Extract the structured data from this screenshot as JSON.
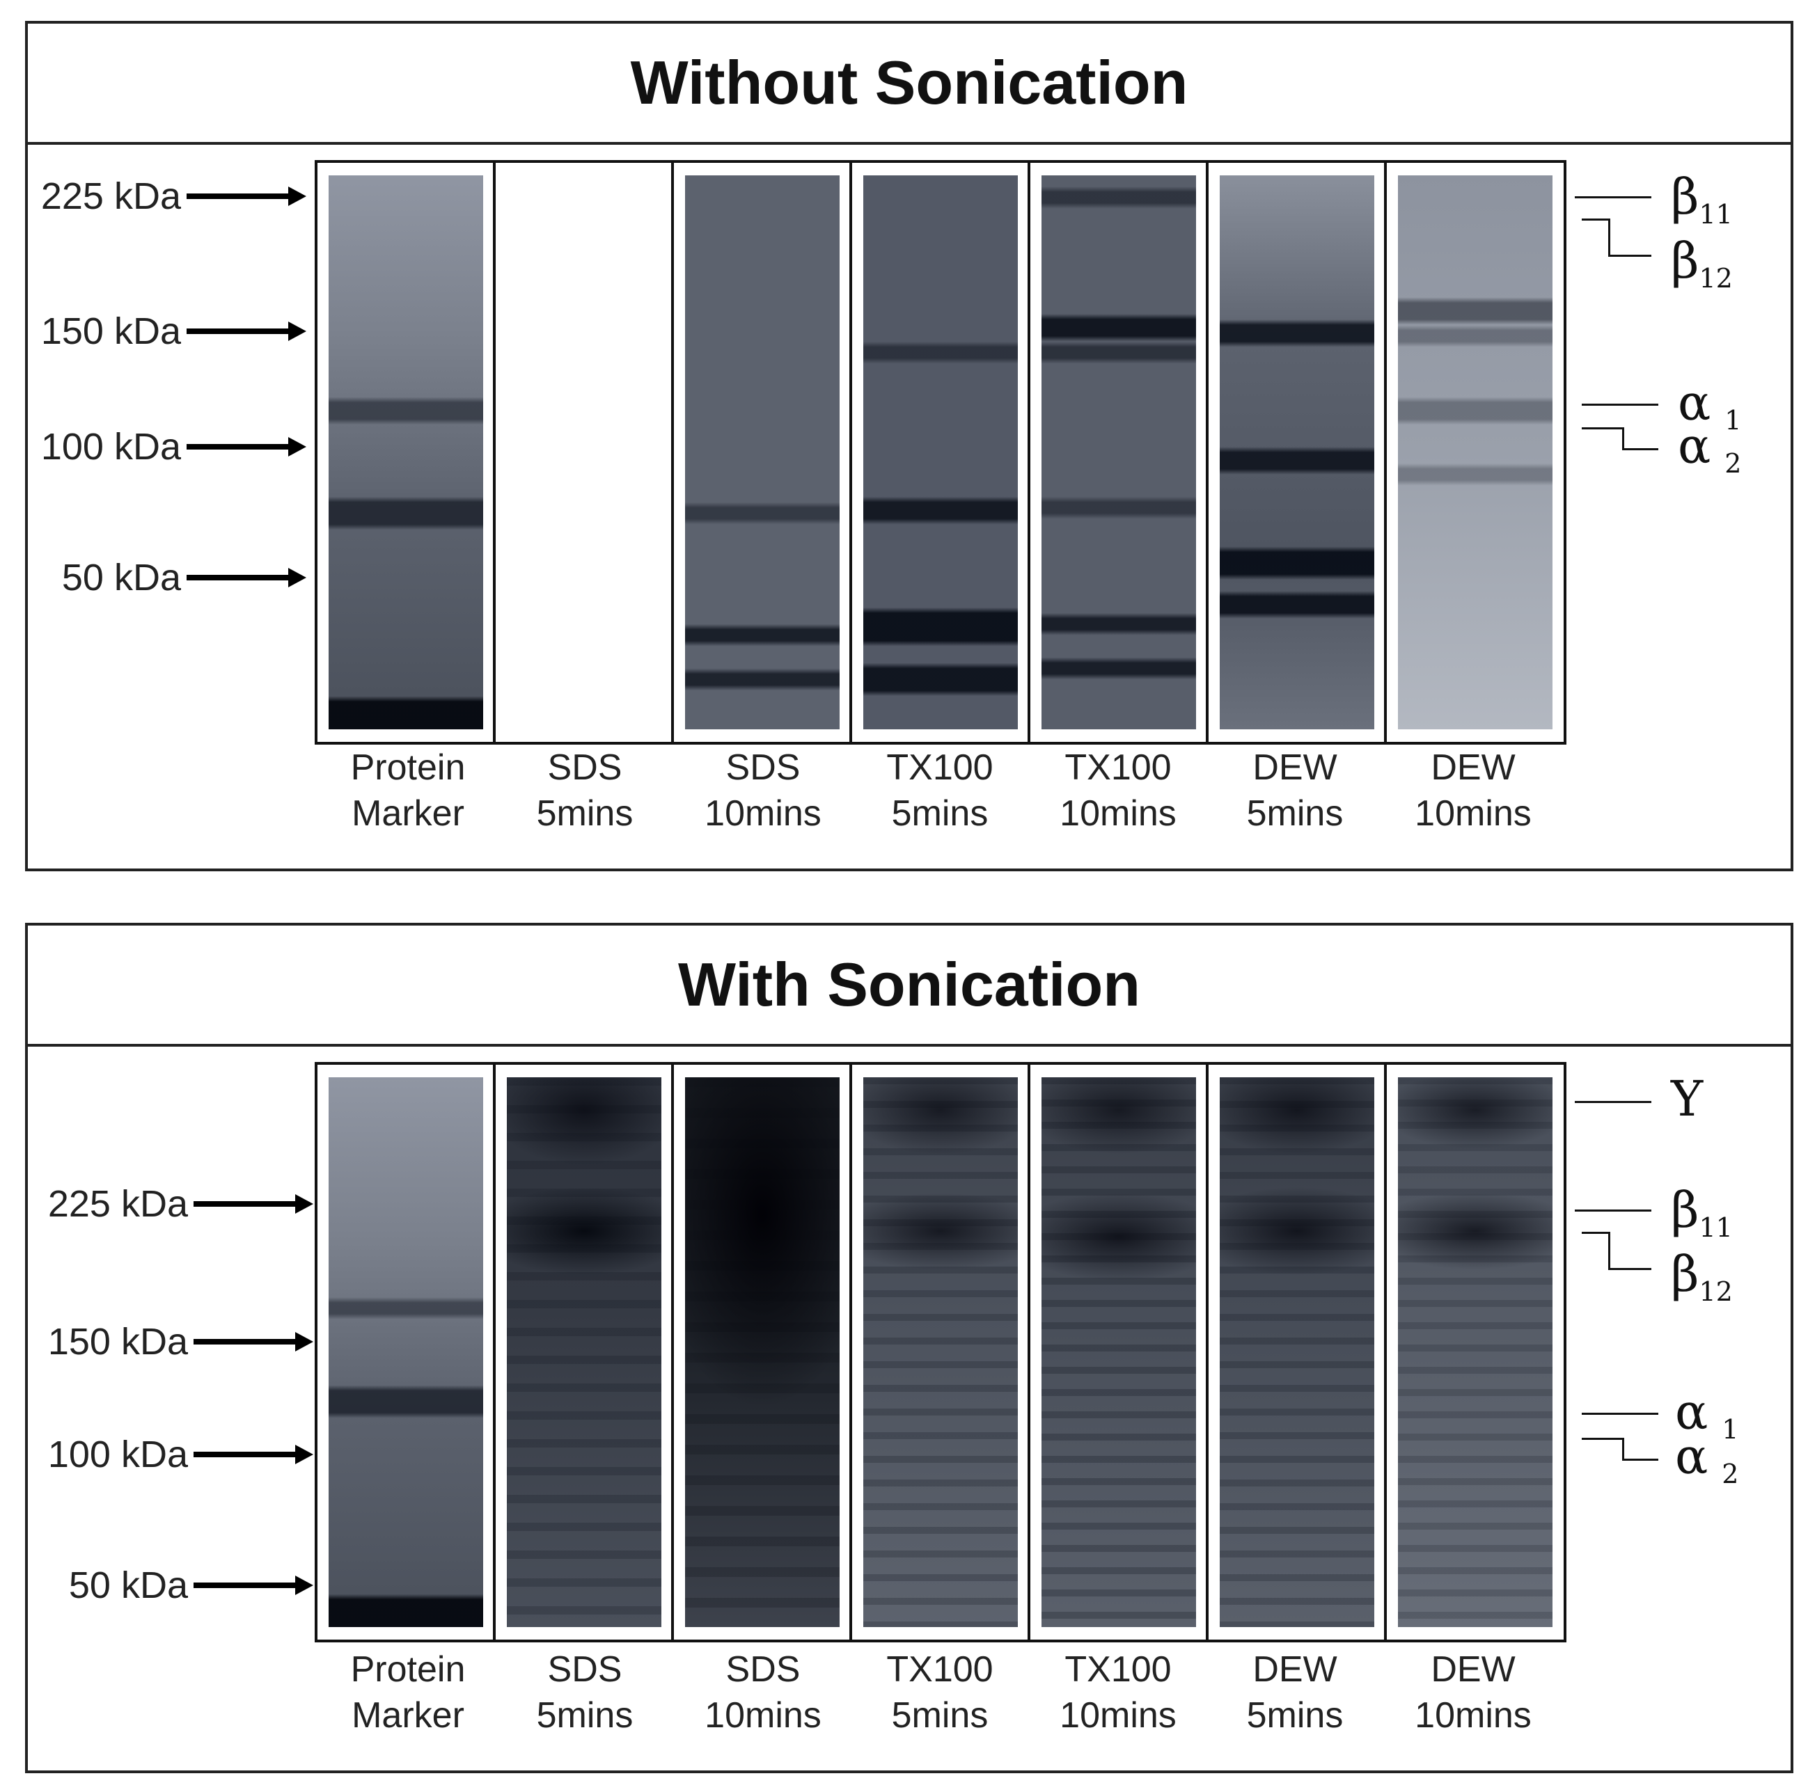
{
  "panels": [
    {
      "title": "Without Sonication",
      "markers": [
        {
          "label": "225 kDa"
        },
        {
          "label": "150 kDa"
        },
        {
          "label": "100 kDa"
        },
        {
          "label": "50 kDa"
        }
      ],
      "lanes": [
        {
          "line1": "Protein",
          "line2": "Marker"
        },
        {
          "line1": "SDS",
          "line2": "5mins"
        },
        {
          "line1": "SDS",
          "line2": "10mins"
        },
        {
          "line1": "TX100",
          "line2": "5mins"
        },
        {
          "line1": "TX100",
          "line2": "10mins"
        },
        {
          "line1": "DEW",
          "line2": "5mins"
        },
        {
          "line1": "DEW",
          "line2": "10mins"
        }
      ],
      "annotations": [
        {
          "symbol": "β",
          "sub": "11"
        },
        {
          "symbol": "β",
          "sub": "12"
        },
        {
          "symbol": "α",
          "sub": "1"
        },
        {
          "symbol": "α",
          "sub": "2"
        }
      ]
    },
    {
      "title": "With Sonication",
      "markers": [
        {
          "label": "225 kDa"
        },
        {
          "label": "150 kDa"
        },
        {
          "label": "100 kDa"
        },
        {
          "label": "50 kDa"
        }
      ],
      "lanes": [
        {
          "line1": "Protein",
          "line2": "Marker"
        },
        {
          "line1": "SDS",
          "line2": "5mins"
        },
        {
          "line1": "SDS",
          "line2": "10mins"
        },
        {
          "line1": "TX100",
          "line2": "5mins"
        },
        {
          "line1": "TX100",
          "line2": "10mins"
        },
        {
          "line1": "DEW",
          "line2": "5mins"
        },
        {
          "line1": "DEW",
          "line2": "10mins"
        }
      ],
      "annotations": [
        {
          "symbol": "Y",
          "sub": ""
        },
        {
          "symbol": "β",
          "sub": "11"
        },
        {
          "symbol": "β",
          "sub": "12"
        },
        {
          "symbol": "α",
          "sub": "1"
        },
        {
          "symbol": "α",
          "sub": "2"
        }
      ]
    }
  ]
}
